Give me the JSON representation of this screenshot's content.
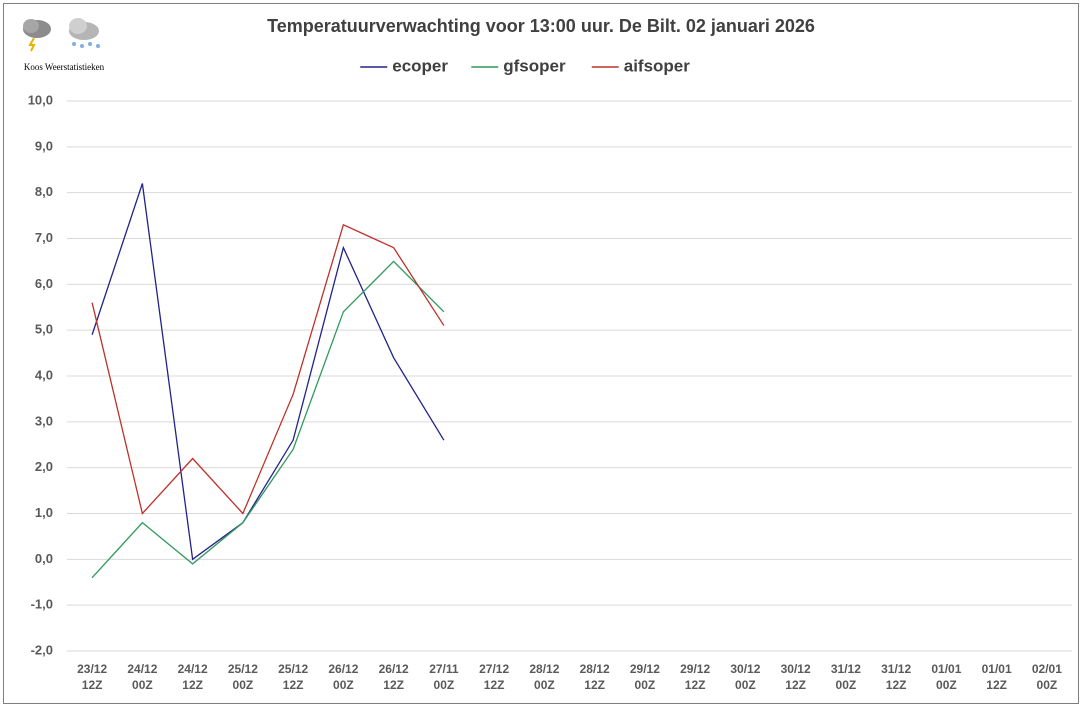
{
  "chart_data": {
    "type": "line",
    "title": "Temperatuurverwachting voor 13:00 uur. De Bilt. 02 januari 2026",
    "source": "Koos Weerstatistieken",
    "categories": [
      "23/12 12Z",
      "24/12 00Z",
      "24/12 12Z",
      "25/12 00Z",
      "25/12 12Z",
      "26/12 00Z",
      "26/12 12Z",
      "27/11 00Z",
      "27/12 12Z",
      "28/12 00Z",
      "28/12 12Z",
      "29/12 00Z",
      "29/12 12Z",
      "30/12 00Z",
      "30/12 12Z",
      "31/12 00Z",
      "31/12 12Z",
      "01/01 00Z",
      "01/01 12Z",
      "02/01 00Z"
    ],
    "series": [
      {
        "name": "ecoper",
        "color": "#22228a",
        "values": [
          4.9,
          8.2,
          0.0,
          0.8,
          2.6,
          6.8,
          4.4,
          2.6,
          null,
          null,
          null,
          null,
          null,
          null,
          null,
          null,
          null,
          null,
          null,
          null
        ]
      },
      {
        "name": "gfsoper",
        "color": "#2e9a5c",
        "values": [
          -0.4,
          0.8,
          -0.1,
          0.8,
          2.4,
          5.4,
          6.5,
          5.4,
          null,
          null,
          null,
          null,
          null,
          null,
          null,
          null,
          null,
          null,
          null,
          null
        ]
      },
      {
        "name": "aifsoper",
        "color": "#c0302a",
        "values": [
          5.6,
          1.0,
          2.2,
          1.0,
          3.6,
          7.3,
          6.8,
          5.1,
          null,
          null,
          null,
          null,
          null,
          null,
          null,
          null,
          null,
          null,
          null,
          null
        ]
      }
    ],
    "ylim": [
      -2,
      10
    ],
    "yticks": [
      {
        "value": -2,
        "label": "-2,0"
      },
      {
        "value": -1,
        "label": "-1,0"
      },
      {
        "value": 0,
        "label": "0,0"
      },
      {
        "value": 1,
        "label": "1,0"
      },
      {
        "value": 2,
        "label": "2,0"
      },
      {
        "value": 3,
        "label": "3,0"
      },
      {
        "value": 4,
        "label": "4,0"
      },
      {
        "value": 5,
        "label": "5,0"
      },
      {
        "value": 6,
        "label": "6,0"
      },
      {
        "value": 7,
        "label": "7,0"
      },
      {
        "value": 8,
        "label": "8,0"
      },
      {
        "value": 9,
        "label": "9,0"
      },
      {
        "value": 10,
        "label": "10,0"
      }
    ],
    "grid": true,
    "legend": "top"
  }
}
